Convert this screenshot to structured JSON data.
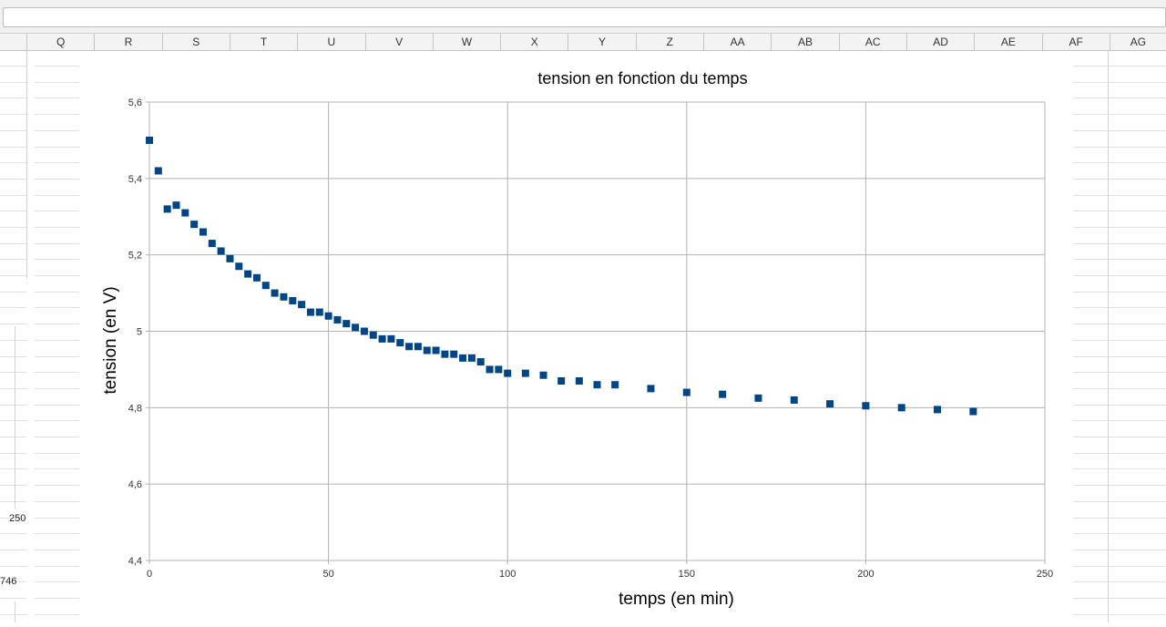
{
  "spreadsheet": {
    "columns": [
      "Q",
      "R",
      "S",
      "T",
      "U",
      "V",
      "W",
      "X",
      "Y",
      "Z",
      "AA",
      "AB",
      "AC",
      "AD",
      "AE",
      "AF",
      "AG"
    ],
    "cell_fragments": [
      "250",
      "746"
    ]
  },
  "chart_data": {
    "type": "scatter",
    "title": "tension en fonction du temps",
    "xlabel": "temps (en min)",
    "ylabel": "tension (en V)",
    "xlim": [
      0,
      250
    ],
    "ylim": [
      4.4,
      5.6
    ],
    "xticks": [
      0,
      50,
      100,
      150,
      200,
      250
    ],
    "yticks": [
      4.4,
      4.6,
      4.8,
      5.0,
      5.2,
      5.4,
      5.6
    ],
    "xtick_labels": [
      "0",
      "50",
      "100",
      "150",
      "200",
      "250"
    ],
    "ytick_labels": [
      "4,4",
      "4,6",
      "4,8",
      "5",
      "5,2",
      "5,4",
      "5,6"
    ],
    "grid": true,
    "legend": "none",
    "marker": "square",
    "color": "#004586",
    "series": [
      {
        "x": [
          0,
          2.5,
          5,
          7.5,
          10,
          12.5,
          15,
          17.5,
          20,
          22.5,
          25,
          27.5,
          30,
          32.5,
          35,
          37.5,
          40,
          42.5,
          45,
          47.5,
          50,
          52.5,
          55,
          57.5,
          60,
          62.5,
          65,
          67.5,
          70,
          72.5,
          75,
          77.5,
          80,
          82.5,
          85,
          87.5,
          90,
          92.5,
          95,
          97.5,
          100,
          105,
          110,
          115,
          120,
          125,
          130,
          140,
          150,
          160,
          170,
          180,
          190,
          200,
          210,
          220,
          230
        ],
        "y": [
          5.5,
          5.42,
          5.32,
          5.33,
          5.31,
          5.28,
          5.26,
          5.23,
          5.21,
          5.19,
          5.17,
          5.15,
          5.14,
          5.12,
          5.1,
          5.09,
          5.08,
          5.07,
          5.05,
          5.05,
          5.04,
          5.03,
          5.02,
          5.01,
          5.0,
          4.99,
          4.98,
          4.98,
          4.97,
          4.96,
          4.96,
          4.95,
          4.95,
          4.94,
          4.94,
          4.93,
          4.93,
          4.92,
          4.9,
          4.9,
          4.89,
          4.89,
          4.885,
          4.87,
          4.87,
          4.86,
          4.86,
          4.85,
          4.84,
          4.835,
          4.825,
          4.82,
          4.81,
          4.805,
          4.8,
          4.795,
          4.79
        ]
      }
    ]
  }
}
